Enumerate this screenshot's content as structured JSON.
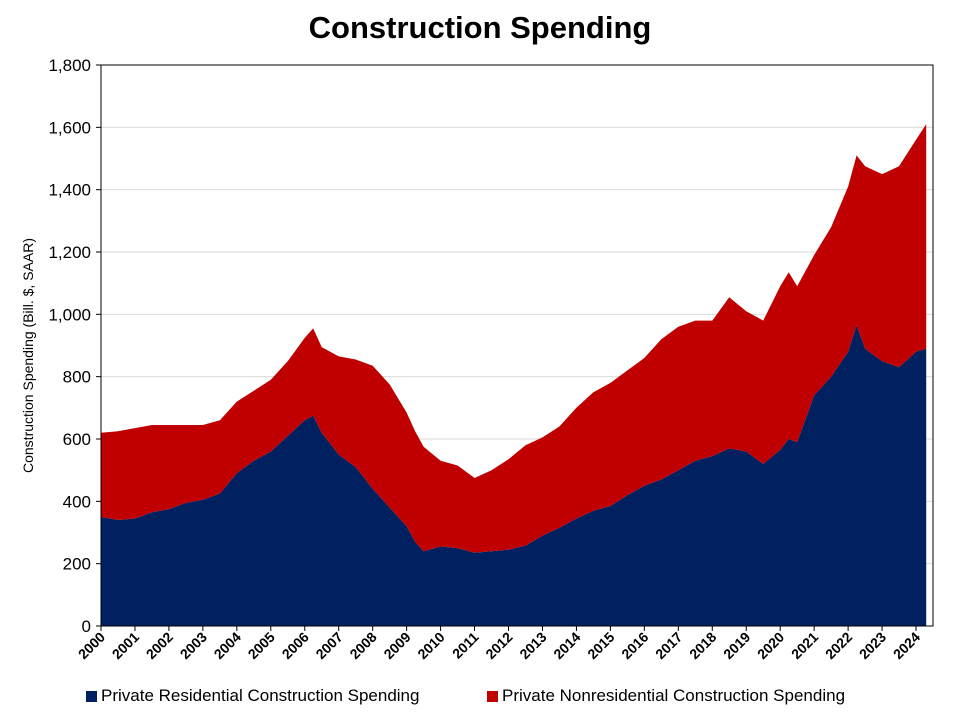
{
  "chart_data": {
    "type": "area",
    "stacked": true,
    "title": "Construction Spending",
    "ylabel": "Construction Spending (Bill. $, SAAR)",
    "xlabel": "",
    "ylim": [
      0,
      1800
    ],
    "yticks": [
      0,
      200,
      400,
      600,
      800,
      1000,
      1200,
      1400,
      1600,
      1800
    ],
    "ytick_labels": [
      "0",
      "200",
      "400",
      "600",
      "800",
      "1,000",
      "1,200",
      "1,400",
      "1,600",
      "1,800"
    ],
    "xlim": [
      2000,
      2024.5
    ],
    "xtick_labels": [
      "2000",
      "2001",
      "2002",
      "2003",
      "2004",
      "2005",
      "2006",
      "2007",
      "2008",
      "2009",
      "2010",
      "2011",
      "2012",
      "2013",
      "2014",
      "2015",
      "2016",
      "2017",
      "2018",
      "2019",
      "2020",
      "2021",
      "2022",
      "2023",
      "2024"
    ],
    "grid": "horizontal",
    "legend_position": "bottom",
    "x": [
      2000.0,
      2000.5,
      2001.0,
      2001.5,
      2002.0,
      2002.5,
      2003.0,
      2003.5,
      2004.0,
      2004.5,
      2005.0,
      2005.5,
      2006.0,
      2006.25,
      2006.5,
      2007.0,
      2007.5,
      2008.0,
      2008.5,
      2009.0,
      2009.25,
      2009.5,
      2010.0,
      2010.5,
      2011.0,
      2011.5,
      2012.0,
      2012.5,
      2013.0,
      2013.5,
      2014.0,
      2014.5,
      2015.0,
      2015.5,
      2016.0,
      2016.5,
      2017.0,
      2017.5,
      2018.0,
      2018.5,
      2019.0,
      2019.5,
      2020.0,
      2020.25,
      2020.5,
      2021.0,
      2021.5,
      2022.0,
      2022.25,
      2022.5,
      2023.0,
      2023.5,
      2024.0,
      2024.3
    ],
    "series": [
      {
        "name": "Private Residential Construction Spending",
        "color": "#002060",
        "values": [
          350,
          340,
          345,
          365,
          375,
          395,
          405,
          425,
          490,
          530,
          560,
          610,
          660,
          675,
          620,
          550,
          510,
          440,
          380,
          320,
          270,
          240,
          255,
          250,
          235,
          240,
          245,
          258,
          290,
          315,
          345,
          370,
          385,
          420,
          450,
          470,
          500,
          530,
          545,
          570,
          560,
          520,
          565,
          600,
          590,
          740,
          800,
          880,
          965,
          890,
          850,
          830,
          880,
          890
        ]
      },
      {
        "name": "Private Nonresidential Construction Spending",
        "color": "#C00000",
        "values": [
          270,
          285,
          290,
          280,
          270,
          250,
          240,
          235,
          230,
          225,
          230,
          240,
          265,
          280,
          275,
          315,
          345,
          395,
          395,
          365,
          355,
          335,
          275,
          265,
          240,
          260,
          290,
          322,
          315,
          325,
          355,
          380,
          395,
          400,
          410,
          450,
          460,
          450,
          435,
          485,
          450,
          460,
          525,
          535,
          500,
          450,
          480,
          530,
          545,
          585,
          600,
          645,
          680,
          720
        ]
      }
    ]
  }
}
